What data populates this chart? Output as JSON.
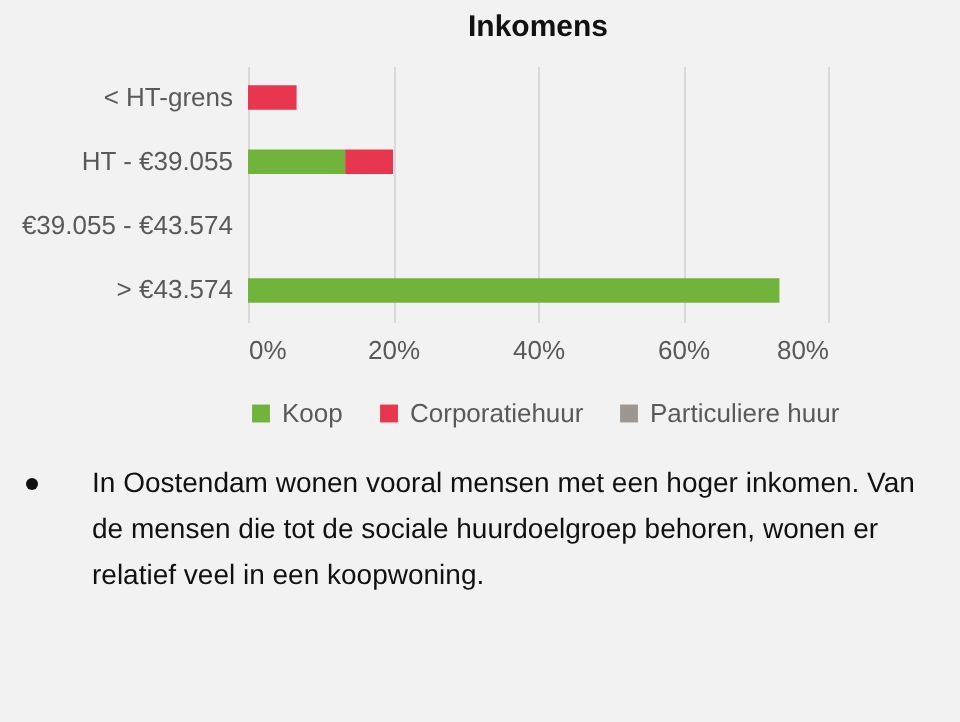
{
  "chart_data": {
    "type": "bar",
    "title": "Inkomens",
    "orientation": "horizontal",
    "stacked": true,
    "categories": [
      "< HT-grens",
      "HT - €39.055",
      "€39.055 - €43.574",
      "> €43.574"
    ],
    "series": [
      {
        "name": "Koop",
        "color": "#70b43c",
        "values": [
          0,
          13.4,
          0,
          73.3
        ]
      },
      {
        "name": "Corporatiehuur",
        "color": "#e8364f",
        "values": [
          6.7,
          6.6,
          0,
          0
        ]
      },
      {
        "name": "Particuliere huur",
        "color": "#9e9690",
        "values": [
          0,
          0,
          0,
          0
        ]
      }
    ],
    "xlim": [
      0,
      80
    ],
    "xticks": [
      {
        "value": 0,
        "label": "0%"
      },
      {
        "value": 20,
        "label": "20%"
      },
      {
        "value": 40,
        "label": "40%"
      },
      {
        "value": 60,
        "label": "60%"
      },
      {
        "value": 80,
        "label": "80%"
      }
    ],
    "grid": "x",
    "legend": "bottom",
    "annotations": [
      "In Oostendam wonen vooral mensen met een hoger inkomen. Van de mensen die tot de sociale huurdoelgroep behoren, wonen er relatief veel in een koopwoning."
    ]
  }
}
